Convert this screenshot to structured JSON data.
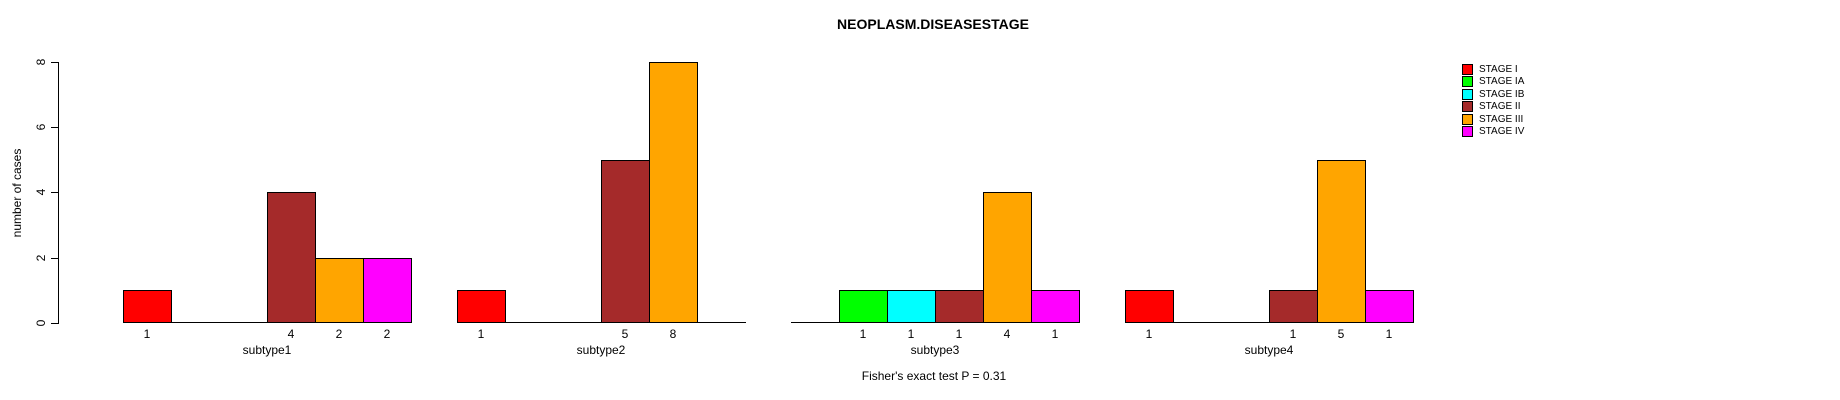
{
  "chart_data": {
    "type": "bar",
    "title": "NEOPLASM.DISEASESTAGE",
    "xlabel": "",
    "ylabel": "number of cases",
    "ylim": [
      0,
      8
    ],
    "yticks": [
      0,
      2,
      4,
      6,
      8
    ],
    "grid": false,
    "legend_position": "top-right",
    "annotation": "Fisher's exact test P = 0.31",
    "categories": [
      "subtype1",
      "subtype2",
      "subtype3",
      "subtype4"
    ],
    "series": [
      {
        "name": "STAGE I",
        "color": "#FF0000",
        "values": [
          1,
          1,
          0,
          1
        ]
      },
      {
        "name": "STAGE IA",
        "color": "#00FF00",
        "values": [
          0,
          0,
          1,
          0
        ]
      },
      {
        "name": "STAGE IB",
        "color": "#00FFFF",
        "values": [
          0,
          0,
          1,
          0
        ]
      },
      {
        "name": "STAGE II",
        "color": "#A52A2A",
        "values": [
          4,
          5,
          1,
          1
        ]
      },
      {
        "name": "STAGE III",
        "color": "#FFA500",
        "values": [
          2,
          8,
          4,
          5
        ]
      },
      {
        "name": "STAGE IV",
        "color": "#FF00FF",
        "values": [
          2,
          0,
          1,
          1
        ]
      }
    ],
    "bar_value_labels": true
  }
}
